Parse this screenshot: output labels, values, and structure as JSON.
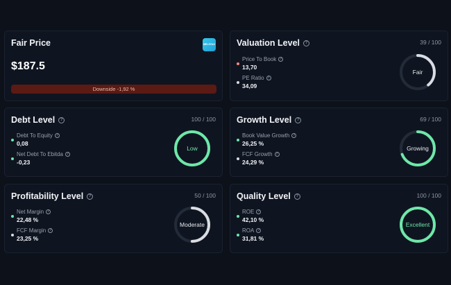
{
  "fair_price": {
    "title": "Fair Price",
    "value": "$187.5",
    "downside_label": "Downside -1,92 %",
    "logo_text": "MELSTAG"
  },
  "valuation": {
    "title": "Valuation Level",
    "score": "39 / 100",
    "gauge_label": "Fair",
    "gauge_fraction": 0.39,
    "gauge_color": "#d9dde3",
    "metrics": [
      {
        "label": "Price To Book",
        "value": "13,70",
        "dot_color": "#f08a7e"
      },
      {
        "label": "PE Ratio",
        "value": "34,09",
        "dot_color": "#d9dde3"
      }
    ]
  },
  "debt": {
    "title": "Debt Level",
    "score": "100 / 100",
    "gauge_label": "Low",
    "gauge_fraction": 1.0,
    "gauge_color": "#6ee7a9",
    "metrics": [
      {
        "label": "Debt To Equity",
        "value": "0,08",
        "dot_color": "#6ee7a9"
      },
      {
        "label": "Net Debt To Ebitda",
        "value": "-0,23",
        "dot_color": "#6ee7a9"
      }
    ]
  },
  "growth": {
    "title": "Growth Level",
    "score": "69 / 100",
    "gauge_label": "Growing",
    "gauge_fraction": 0.69,
    "gauge_color": "#6ee7a9",
    "metrics": [
      {
        "label": "Book Value Growth",
        "value": "26,25 %",
        "dot_color": "#6ee7a9"
      },
      {
        "label": "FCF Growth",
        "value": "24,29 %",
        "dot_color": "#d9dde3"
      }
    ]
  },
  "profitability": {
    "title": "Profitability Level",
    "score": "50 / 100",
    "gauge_label": "Moderate",
    "gauge_fraction": 0.5,
    "gauge_color": "#d9dde3",
    "metrics": [
      {
        "label": "Net Margin",
        "value": "22,48 %",
        "dot_color": "#6ee7a9"
      },
      {
        "label": "FCF Margin",
        "value": "23,25 %",
        "dot_color": "#d9dde3"
      }
    ]
  },
  "quality": {
    "title": "Quality Level",
    "score": "100 / 100",
    "gauge_label": "Excellent",
    "gauge_fraction": 1.0,
    "gauge_color": "#6ee7a9",
    "metrics": [
      {
        "label": "ROE",
        "value": "42,10 %",
        "dot_color": "#6ee7a9"
      },
      {
        "label": "ROA",
        "value": "31,81 %",
        "dot_color": "#6ee7a9"
      }
    ]
  }
}
